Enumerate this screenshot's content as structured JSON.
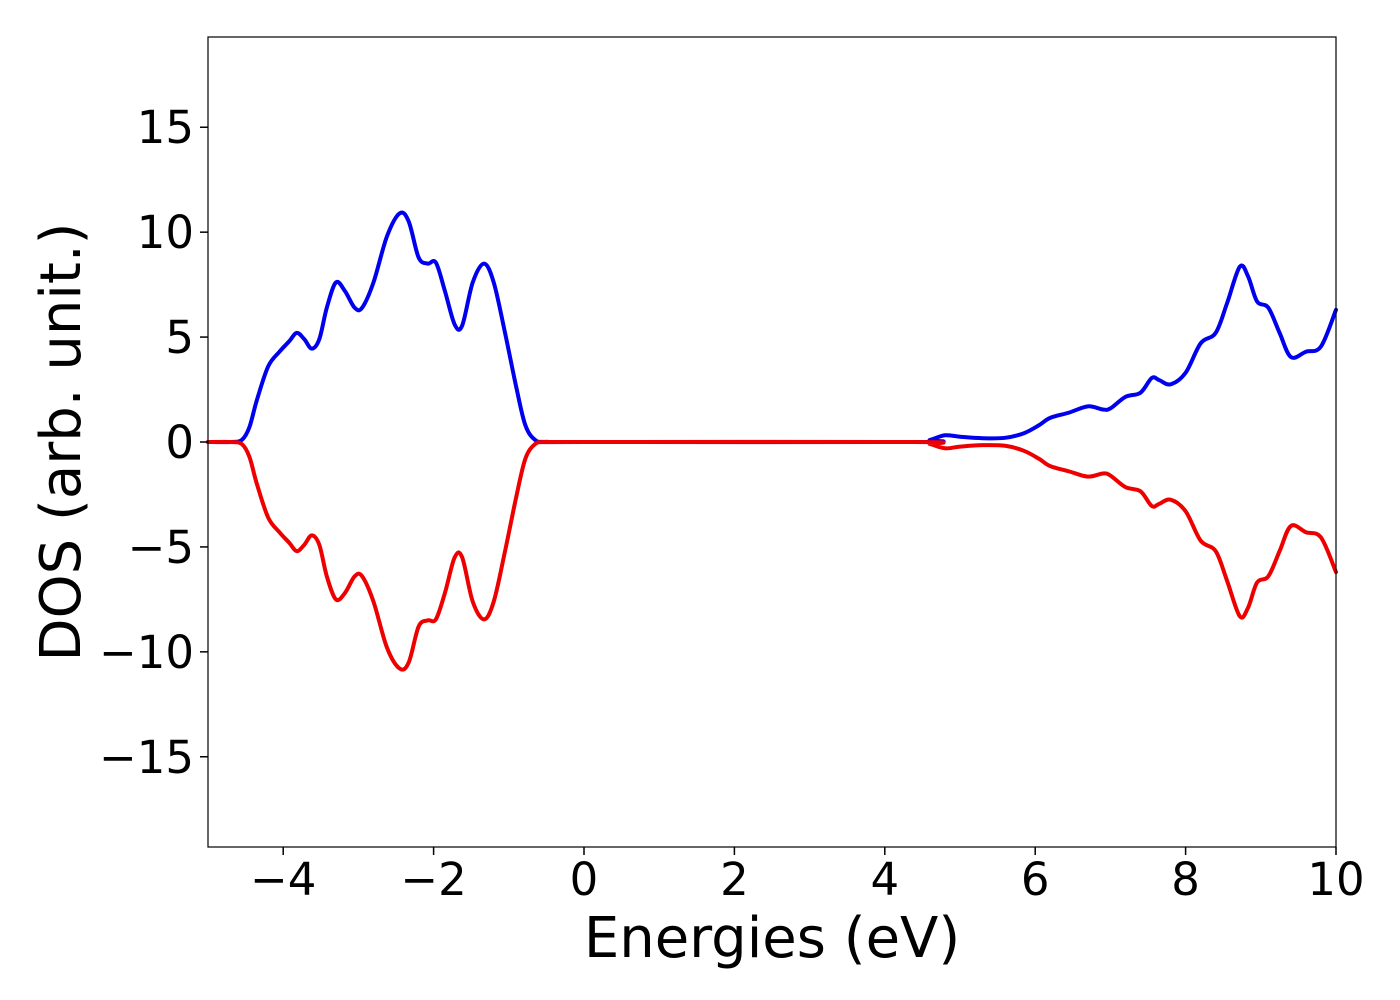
{
  "chart_data": {
    "type": "line",
    "title": "",
    "xlabel": "Energies (eV)",
    "ylabel": "DOS (arb. unit.)",
    "xlim": [
      -5,
      10
    ],
    "ylim": [
      -19.3,
      19.3
    ],
    "xticks": [
      -4,
      -2,
      0,
      2,
      4,
      6,
      8,
      10
    ],
    "xtick_labels": [
      "−4",
      "−2",
      "0",
      "2",
      "4",
      "6",
      "8",
      "10"
    ],
    "yticks": [
      -15,
      -10,
      -5,
      0,
      5,
      10,
      15
    ],
    "ytick_labels": [
      "−15",
      "−10",
      "−5",
      "0",
      "5",
      "10",
      "15"
    ],
    "grid": false,
    "legend": "none",
    "series": [
      {
        "color": "#0000ee",
        "points": [
          [
            -5.0,
            0.0
          ],
          [
            -4.7,
            0.0
          ],
          [
            -4.55,
            0.1
          ],
          [
            -4.45,
            0.7
          ],
          [
            -4.35,
            2.0
          ],
          [
            -4.2,
            3.6
          ],
          [
            -4.05,
            4.3
          ],
          [
            -3.92,
            4.8
          ],
          [
            -3.82,
            5.2
          ],
          [
            -3.72,
            4.9
          ],
          [
            -3.62,
            4.45
          ],
          [
            -3.52,
            4.9
          ],
          [
            -3.42,
            6.4
          ],
          [
            -3.3,
            7.6
          ],
          [
            -3.18,
            7.2
          ],
          [
            -3.05,
            6.4
          ],
          [
            -2.95,
            6.4
          ],
          [
            -2.8,
            7.6
          ],
          [
            -2.62,
            9.8
          ],
          [
            -2.45,
            10.9
          ],
          [
            -2.33,
            10.5
          ],
          [
            -2.2,
            8.8
          ],
          [
            -2.08,
            8.5
          ],
          [
            -1.97,
            8.55
          ],
          [
            -1.85,
            7.2
          ],
          [
            -1.72,
            5.6
          ],
          [
            -1.62,
            5.55
          ],
          [
            -1.48,
            7.6
          ],
          [
            -1.33,
            8.5
          ],
          [
            -1.2,
            7.6
          ],
          [
            -1.05,
            5.2
          ],
          [
            -0.9,
            2.6
          ],
          [
            -0.78,
            0.8
          ],
          [
            -0.65,
            0.1
          ],
          [
            -0.5,
            0.0
          ],
          [
            0.0,
            0.0
          ],
          [
            4.4,
            0.0
          ],
          [
            4.6,
            0.1
          ],
          [
            4.8,
            0.32
          ],
          [
            5.0,
            0.25
          ],
          [
            5.3,
            0.18
          ],
          [
            5.6,
            0.2
          ],
          [
            5.85,
            0.42
          ],
          [
            6.05,
            0.8
          ],
          [
            6.2,
            1.15
          ],
          [
            6.45,
            1.4
          ],
          [
            6.7,
            1.7
          ],
          [
            6.9,
            1.55
          ],
          [
            7.0,
            1.6
          ],
          [
            7.2,
            2.15
          ],
          [
            7.4,
            2.35
          ],
          [
            7.55,
            3.05
          ],
          [
            7.65,
            2.95
          ],
          [
            7.8,
            2.75
          ],
          [
            8.0,
            3.3
          ],
          [
            8.2,
            4.7
          ],
          [
            8.4,
            5.2
          ],
          [
            8.55,
            6.6
          ],
          [
            8.72,
            8.35
          ],
          [
            8.83,
            7.9
          ],
          [
            8.95,
            6.7
          ],
          [
            9.1,
            6.4
          ],
          [
            9.25,
            5.2
          ],
          [
            9.4,
            4.05
          ],
          [
            9.6,
            4.3
          ],
          [
            9.8,
            4.55
          ],
          [
            10.0,
            6.3
          ]
        ]
      },
      {
        "color": "#ee0000",
        "points": [
          [
            -5.0,
            0.0
          ],
          [
            -4.7,
            0.0
          ],
          [
            -4.55,
            -0.1
          ],
          [
            -4.45,
            -0.7
          ],
          [
            -4.35,
            -2.0
          ],
          [
            -4.2,
            -3.6
          ],
          [
            -4.05,
            -4.3
          ],
          [
            -3.92,
            -4.8
          ],
          [
            -3.82,
            -5.2
          ],
          [
            -3.72,
            -4.9
          ],
          [
            -3.62,
            -4.45
          ],
          [
            -3.52,
            -4.9
          ],
          [
            -3.42,
            -6.4
          ],
          [
            -3.3,
            -7.5
          ],
          [
            -3.18,
            -7.2
          ],
          [
            -3.05,
            -6.4
          ],
          [
            -2.95,
            -6.4
          ],
          [
            -2.8,
            -7.6
          ],
          [
            -2.62,
            -9.8
          ],
          [
            -2.45,
            -10.8
          ],
          [
            -2.33,
            -10.5
          ],
          [
            -2.2,
            -8.8
          ],
          [
            -2.08,
            -8.5
          ],
          [
            -1.97,
            -8.45
          ],
          [
            -1.85,
            -7.2
          ],
          [
            -1.72,
            -5.5
          ],
          [
            -1.62,
            -5.5
          ],
          [
            -1.48,
            -7.6
          ],
          [
            -1.33,
            -8.45
          ],
          [
            -1.2,
            -7.6
          ],
          [
            -1.05,
            -5.2
          ],
          [
            -0.9,
            -2.6
          ],
          [
            -0.78,
            -0.8
          ],
          [
            -0.65,
            -0.1
          ],
          [
            -0.5,
            0.0
          ],
          [
            0.0,
            0.0
          ],
          [
            4.4,
            0.0
          ],
          [
            4.6,
            -0.1
          ],
          [
            4.8,
            -0.3
          ],
          [
            5.0,
            -0.22
          ],
          [
            5.3,
            -0.15
          ],
          [
            5.6,
            -0.18
          ],
          [
            5.85,
            -0.42
          ],
          [
            6.05,
            -0.8
          ],
          [
            6.2,
            -1.15
          ],
          [
            6.45,
            -1.4
          ],
          [
            6.7,
            -1.65
          ],
          [
            6.9,
            -1.5
          ],
          [
            7.0,
            -1.6
          ],
          [
            7.2,
            -2.15
          ],
          [
            7.4,
            -2.35
          ],
          [
            7.55,
            -3.05
          ],
          [
            7.65,
            -2.95
          ],
          [
            7.8,
            -2.75
          ],
          [
            8.0,
            -3.3
          ],
          [
            8.2,
            -4.7
          ],
          [
            8.4,
            -5.2
          ],
          [
            8.55,
            -6.6
          ],
          [
            8.72,
            -8.3
          ],
          [
            8.83,
            -7.9
          ],
          [
            8.95,
            -6.7
          ],
          [
            9.1,
            -6.4
          ],
          [
            9.25,
            -5.2
          ],
          [
            9.4,
            -4.0
          ],
          [
            9.6,
            -4.3
          ],
          [
            9.8,
            -4.55
          ],
          [
            10.0,
            -6.2
          ]
        ]
      }
    ]
  }
}
